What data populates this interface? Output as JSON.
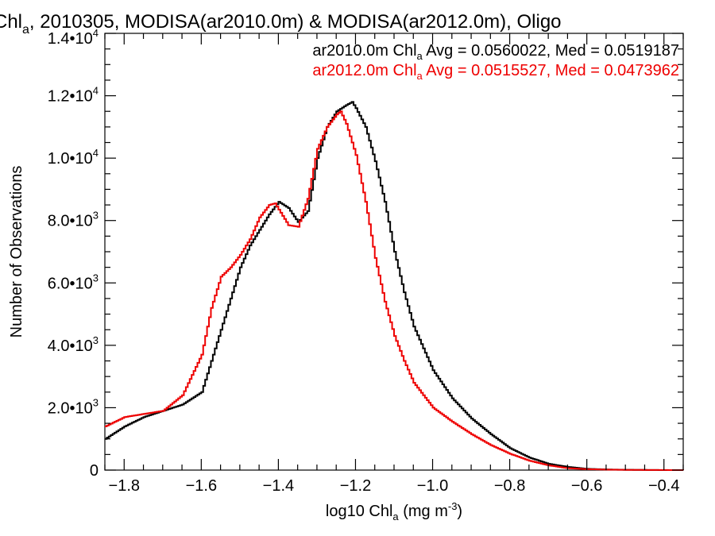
{
  "chart_data": {
    "type": "line",
    "title_parts": [
      "Chl",
      "a",
      ", 2010305, MODISA(ar2010.0m) & MODISA(ar2012.0m), Oligo"
    ],
    "xlabel_parts": [
      "log10 Chl",
      "a",
      " (mg m",
      "-3",
      ")"
    ],
    "ylabel": "Number of Observations",
    "xlim": [
      -1.85,
      -0.35
    ],
    "ylim": [
      0,
      14000
    ],
    "x_ticks": [
      -1.8,
      -1.6,
      -1.4,
      -1.2,
      -1.0,
      -0.8,
      -0.6,
      -0.4
    ],
    "x_tick_labels": [
      "−1.8",
      "−1.6",
      "−1.4",
      "−1.2",
      "−1.0",
      "−0.8",
      "−0.6",
      "−0.4"
    ],
    "y_ticks": [
      0,
      2000,
      4000,
      6000,
      8000,
      10000,
      12000,
      14000
    ],
    "y_tick_labels": [
      {
        "base": "0",
        "exp": ""
      },
      {
        "base": "2.0•10",
        "exp": "3"
      },
      {
        "base": "4.0•10",
        "exp": "3"
      },
      {
        "base": "6.0•10",
        "exp": "3"
      },
      {
        "base": "8.0•10",
        "exp": "3"
      },
      {
        "base": "1.0•10",
        "exp": "4"
      },
      {
        "base": "1.2•10",
        "exp": "4"
      },
      {
        "base": "1.4•10",
        "exp": "4"
      }
    ],
    "legend_position": "top-right",
    "series": [
      {
        "legend_parts": [
          "ar2010.0m Chl",
          "a",
          " Avg = 0.0560022, Med = 0.0519187"
        ],
        "color": "#000000",
        "x": [
          -1.85,
          -1.8,
          -1.75,
          -1.7,
          -1.65,
          -1.6,
          -1.55,
          -1.5,
          -1.475,
          -1.45,
          -1.425,
          -1.4,
          -1.375,
          -1.35,
          -1.325,
          -1.3,
          -1.275,
          -1.25,
          -1.225,
          -1.21,
          -1.2,
          -1.175,
          -1.15,
          -1.125,
          -1.1,
          -1.075,
          -1.05,
          -1.0,
          -0.95,
          -0.9,
          -0.85,
          -0.8,
          -0.75,
          -0.7,
          -0.65,
          -0.6,
          -0.55,
          -0.5,
          -0.45,
          -0.4,
          -0.35
        ],
        "y": [
          1000,
          1400,
          1700,
          1900,
          2100,
          2500,
          4500,
          6500,
          7200,
          7700,
          8200,
          8600,
          8400,
          7950,
          8300,
          10000,
          11000,
          11500,
          11700,
          11800,
          11600,
          11000,
          9900,
          8600,
          7000,
          5700,
          4600,
          3200,
          2300,
          1650,
          1150,
          700,
          400,
          200,
          100,
          40,
          20,
          10,
          5,
          0,
          0
        ]
      },
      {
        "legend_parts": [
          "ar2012.0m Chl",
          "a",
          " Avg = 0.0515527, Med = 0.0473962"
        ],
        "color": "#ee0000",
        "x": [
          -1.85,
          -1.8,
          -1.75,
          -1.7,
          -1.65,
          -1.6,
          -1.575,
          -1.55,
          -1.525,
          -1.5,
          -1.475,
          -1.45,
          -1.425,
          -1.41,
          -1.4,
          -1.375,
          -1.35,
          -1.325,
          -1.3,
          -1.275,
          -1.25,
          -1.24,
          -1.225,
          -1.2,
          -1.175,
          -1.15,
          -1.125,
          -1.1,
          -1.075,
          -1.05,
          -1.0,
          -0.95,
          -0.9,
          -0.85,
          -0.8,
          -0.75,
          -0.7,
          -0.65,
          -0.6,
          -0.55,
          -0.5,
          -0.45,
          -0.4,
          -0.35
        ],
        "y": [
          1400,
          1700,
          1800,
          1900,
          2400,
          3700,
          5200,
          6200,
          6500,
          6900,
          7400,
          8100,
          8500,
          8550,
          8350,
          7850,
          7800,
          8700,
          10300,
          11000,
          11400,
          11500,
          11100,
          10100,
          8600,
          6800,
          5400,
          4300,
          3500,
          2800,
          2000,
          1550,
          1150,
          800,
          520,
          300,
          150,
          60,
          30,
          15,
          8,
          4,
          2,
          0
        ]
      }
    ]
  }
}
